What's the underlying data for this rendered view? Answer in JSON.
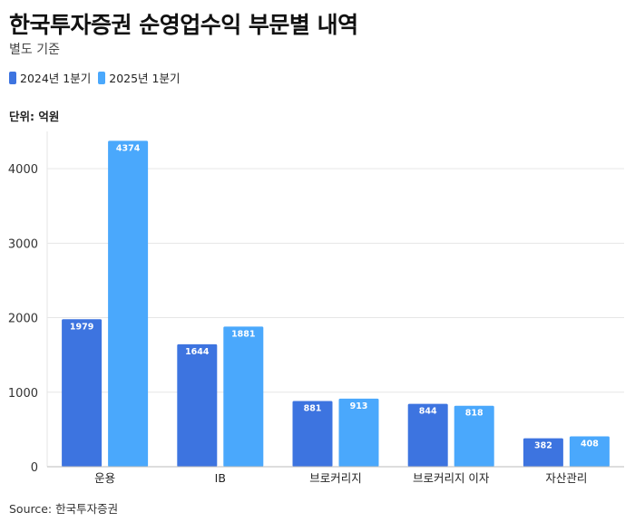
{
  "header": {
    "title": "한국투자증권 순영업수익 부문별 내역",
    "subtitle": "별도 기준"
  },
  "unit_label": "단위: 억원",
  "source": "Source: 한국투자증권",
  "colors": {
    "series_2024": "#3d74e0",
    "series_2025": "#4aa8fc",
    "grid": "#e6e6e6",
    "axis": "#bbbbbb"
  },
  "chart_data": {
    "type": "bar",
    "title": "한국투자증권 순영업수익 부문별 내역",
    "subtitle": "별도 기준",
    "ylabel": "단위: 억원",
    "categories": [
      "운용",
      "IB",
      "브로커리지",
      "브로커리지 이자",
      "자산관리"
    ],
    "series": [
      {
        "name": "2024년 1분기",
        "values": [
          1979,
          1644,
          881,
          844,
          382
        ]
      },
      {
        "name": "2025년 1분기",
        "values": [
          4374,
          1881,
          913,
          818,
          408
        ]
      }
    ],
    "ylim": [
      0,
      4500
    ],
    "yticks": [
      0,
      1000,
      2000,
      3000,
      4000
    ],
    "grid": true,
    "legend": "top-left"
  }
}
